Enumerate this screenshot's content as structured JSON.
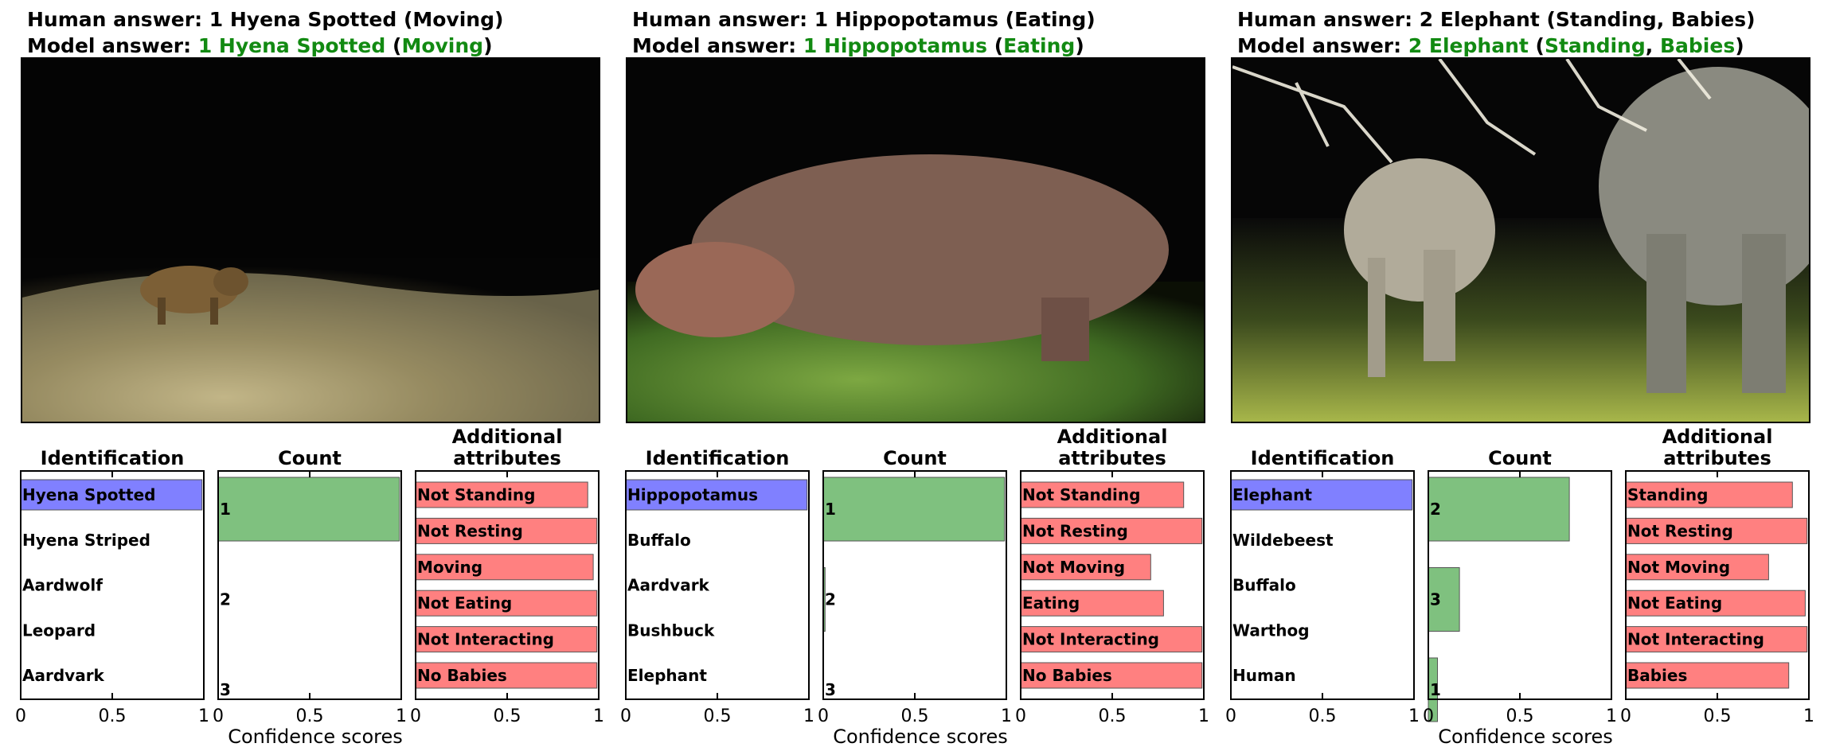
{
  "figure": {
    "x_axis_label": "Confidence scores",
    "colors": {
      "identification": "#8080ff",
      "count": "#7fc17f",
      "attributes": "#ff8080",
      "correct": "#128a12"
    }
  },
  "panels": [
    {
      "human_answer": "Human answer: 1 Hyena Spotted (Moving)",
      "model_prefix": "Model  answer: ",
      "model_parts": [
        {
          "text": "1 Hyena Spotted",
          "correct": true
        },
        {
          "text": " (",
          "correct": false
        },
        {
          "text": "Moving",
          "correct": true
        },
        {
          "text": ")",
          "correct": false
        }
      ],
      "photo": {
        "subject": "hyena",
        "scene": "night grassland"
      }
    },
    {
      "human_answer": "Human answer: 1 Hippopotamus (Eating)",
      "model_prefix": "Model  answer: ",
      "model_parts": [
        {
          "text": "1 Hippopotamus",
          "correct": true
        },
        {
          "text": " (",
          "correct": false
        },
        {
          "text": "Eating",
          "correct": true
        },
        {
          "text": ")",
          "correct": false
        }
      ],
      "photo": {
        "subject": "hippopotamus",
        "scene": "night grassland"
      }
    },
    {
      "human_answer": "Human answer: 2 Elephant (Standing, Babies)",
      "model_prefix": "Model  answer: ",
      "model_parts": [
        {
          "text": "2 Elephant",
          "correct": true
        },
        {
          "text": " (",
          "correct": false
        },
        {
          "text": "Standing",
          "correct": true
        },
        {
          "text": ", ",
          "correct": false
        },
        {
          "text": "Babies",
          "correct": true
        },
        {
          "text": ")",
          "correct": false
        }
      ],
      "photo": {
        "subject": "elephants",
        "scene": "night grassland with branches"
      }
    }
  ],
  "chart_data": [
    {
      "panel": 1,
      "type": "bar",
      "orientation": "horizontal",
      "subplots": [
        {
          "title": "Identification",
          "xlim": [
            0,
            1
          ],
          "xticks": [
            "0",
            "0.5",
            "1"
          ],
          "categories": [
            "Hyena Spotted",
            "Hyena Striped",
            "Aardwolf",
            "Leopard",
            "Aardvark"
          ],
          "values": [
            0.99,
            0.0,
            0.0,
            0.0,
            0.0
          ]
        },
        {
          "title": "Count",
          "xlim": [
            0,
            1
          ],
          "xticks": [
            "0",
            "0.5",
            "1"
          ],
          "categories": [
            "1",
            "2",
            "3"
          ],
          "values": [
            0.99,
            0.0,
            0.0
          ]
        },
        {
          "title": "Additional attributes",
          "xlim": [
            0,
            1
          ],
          "xticks": [
            "0",
            "0.5",
            "1"
          ],
          "categories": [
            "Not Standing",
            "Not Resting",
            "Moving",
            "Not Eating",
            "Not Interacting",
            "No Babies"
          ],
          "values": [
            0.94,
            0.99,
            0.97,
            0.99,
            0.99,
            0.99
          ]
        }
      ]
    },
    {
      "panel": 2,
      "type": "bar",
      "orientation": "horizontal",
      "subplots": [
        {
          "title": "Identification",
          "xlim": [
            0,
            1
          ],
          "xticks": [
            "0",
            "0.5",
            "1"
          ],
          "categories": [
            "Hippopotamus",
            "Buffalo",
            "Aardvark",
            "Bushbuck",
            "Elephant"
          ],
          "values": [
            0.99,
            0.0,
            0.0,
            0.0,
            0.0
          ]
        },
        {
          "title": "Count",
          "xlim": [
            0,
            1
          ],
          "xticks": [
            "0",
            "0.5",
            "1"
          ],
          "categories": [
            "1",
            "2",
            "3"
          ],
          "values": [
            0.99,
            0.01,
            0.0
          ]
        },
        {
          "title": "Additional attributes",
          "xlim": [
            0,
            1
          ],
          "xticks": [
            "0",
            "0.5",
            "1"
          ],
          "categories": [
            "Not Standing",
            "Not Resting",
            "Not Moving",
            "Eating",
            "Not Interacting",
            "No Babies"
          ],
          "values": [
            0.89,
            0.99,
            0.71,
            0.78,
            0.99,
            0.99
          ]
        }
      ]
    },
    {
      "panel": 3,
      "type": "bar",
      "orientation": "horizontal",
      "subplots": [
        {
          "title": "Identification",
          "xlim": [
            0,
            1
          ],
          "xticks": [
            "0",
            "0.5",
            "1"
          ],
          "categories": [
            "Elephant",
            "Wildebeest",
            "Buffalo",
            "Warthog",
            "Human"
          ],
          "values": [
            0.99,
            0.0,
            0.0,
            0.0,
            0.0
          ]
        },
        {
          "title": "Count",
          "xlim": [
            0,
            1
          ],
          "xticks": [
            "0",
            "0.5",
            "1"
          ],
          "categories": [
            "2",
            "3",
            "1"
          ],
          "values": [
            0.77,
            0.17,
            0.05
          ]
        },
        {
          "title": "Additional attributes",
          "xlim": [
            0,
            1
          ],
          "xticks": [
            "0",
            "0.5",
            "1"
          ],
          "categories": [
            "Standing",
            "Not Resting",
            "Not Moving",
            "Not Eating",
            "Not Interacting",
            "Babies"
          ],
          "values": [
            0.91,
            0.99,
            0.78,
            0.98,
            0.99,
            0.89
          ]
        }
      ]
    }
  ]
}
